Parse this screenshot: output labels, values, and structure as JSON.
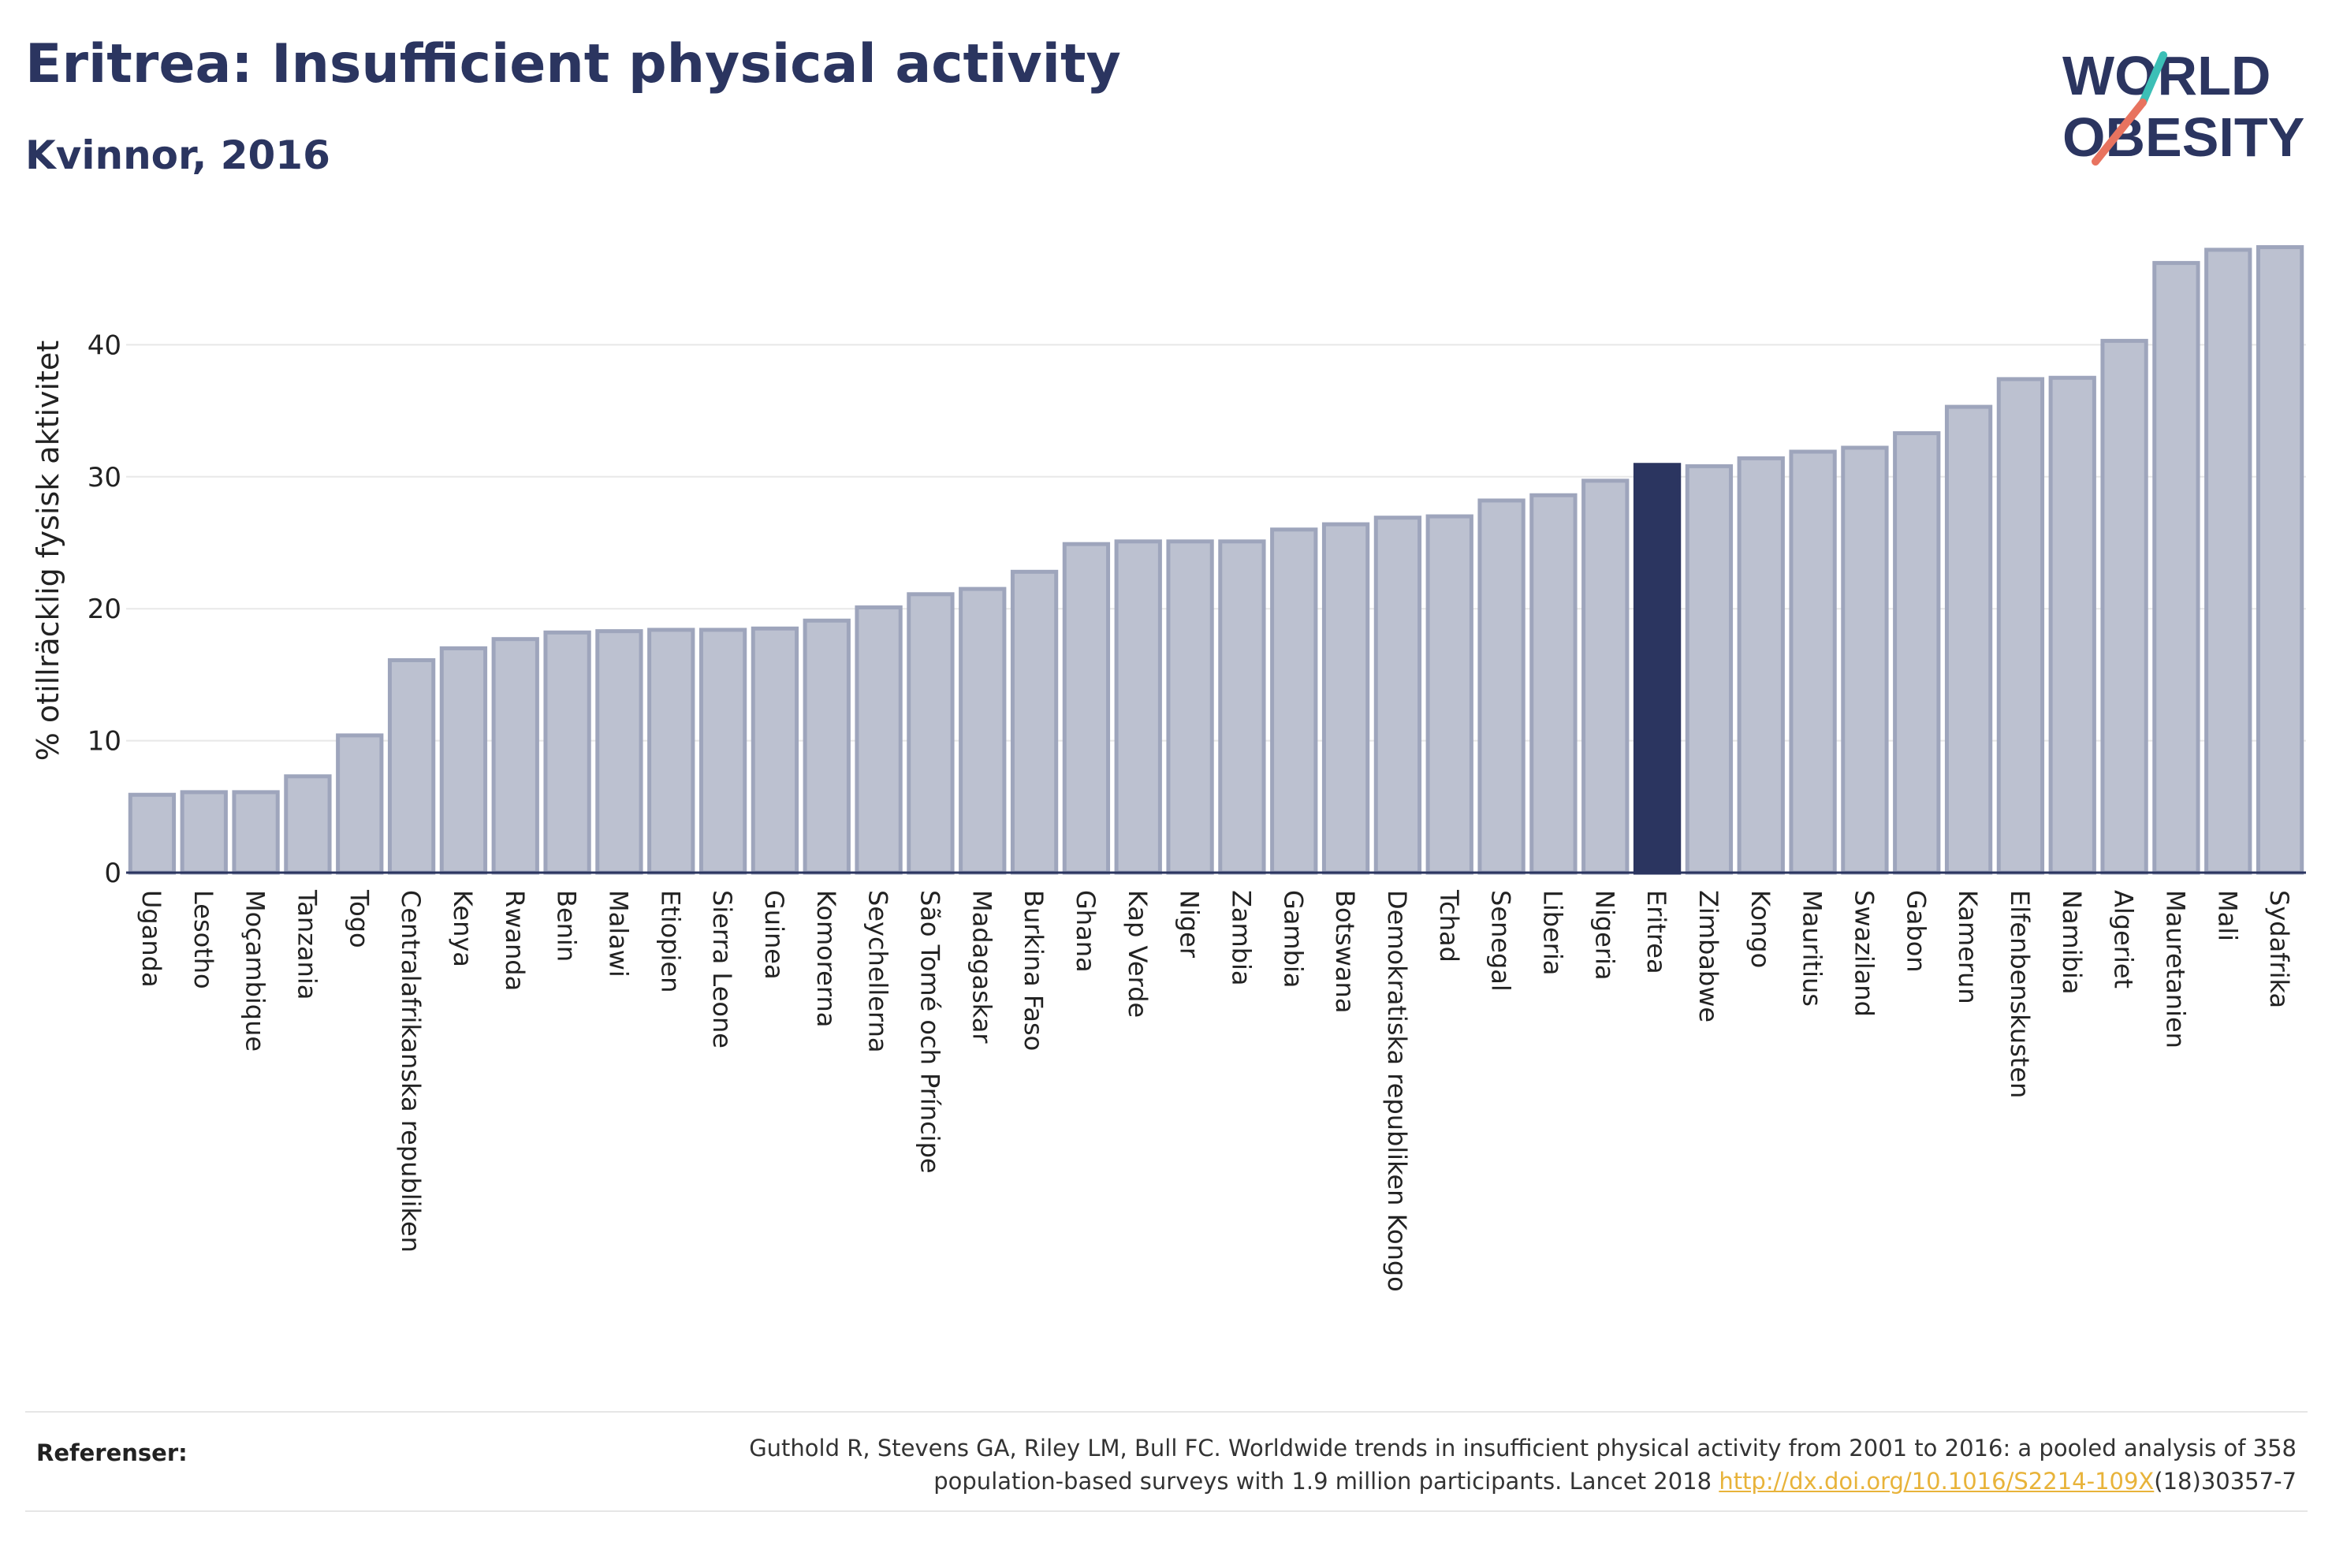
{
  "header": {
    "title": "Eritrea: Insufficient physical activity",
    "subtitle": "Kvinnor, 2016"
  },
  "logo": {
    "line1": "WORLD",
    "line2": "OBESITY",
    "slash_color": "#e8735f",
    "slash_accent": "#3cbfb6",
    "text_color": "#2b3560"
  },
  "colors": {
    "bar": "#bcc1d0",
    "bar_border": "#9ea5bc",
    "highlight": "#2b3560",
    "axis": "#2b3560",
    "grid": "#e8e8e8",
    "link": "#e8b33a"
  },
  "chart_data": {
    "type": "bar",
    "ylabel": "% otillräcklig fysisk aktivitet",
    "xlabel": "",
    "ylim": [
      0,
      50
    ],
    "yticks": [
      0,
      10,
      20,
      30,
      40
    ],
    "grid": true,
    "highlight": "Eritrea",
    "categories": [
      "Uganda",
      "Lesotho",
      "Moçambique",
      "Tanzania",
      "Togo",
      "Centralafrikanska republiken",
      "Kenya",
      "Rwanda",
      "Benin",
      "Malawi",
      "Etiopien",
      "Sierra Leone",
      "Guinea",
      "Komorerna",
      "Seychellerna",
      "São Tomé och Príncipe",
      "Madagaskar",
      "Burkina Faso",
      "Ghana",
      "Kap Verde",
      "Niger",
      "Zambia",
      "Gambia",
      "Botswana",
      "Demokratiska republiken Kongo",
      "Tchad",
      "Senegal",
      "Liberia",
      "Nigeria",
      "Eritrea",
      "Zimbabwe",
      "Kongo",
      "Mauritius",
      "Swaziland",
      "Gabon",
      "Kamerun",
      "Elfenbenskusten",
      "Namibia",
      "Algeriet",
      "Mauretanien",
      "Mali",
      "Sydafrika"
    ],
    "values": [
      5.9,
      6.1,
      6.1,
      7.3,
      10.4,
      16.1,
      17.0,
      17.7,
      18.2,
      18.3,
      18.4,
      18.4,
      18.5,
      19.1,
      20.1,
      21.1,
      21.5,
      22.8,
      24.9,
      25.1,
      25.1,
      25.1,
      26.0,
      26.4,
      26.9,
      27.0,
      28.2,
      28.6,
      29.7,
      30.9,
      30.8,
      31.4,
      31.9,
      32.2,
      33.3,
      35.3,
      37.4,
      37.5,
      40.3,
      46.2,
      47.2,
      47.4
    ]
  },
  "references": {
    "label": "Referenser:",
    "line1": "Guthold R, Stevens GA, Riley LM, Bull FC. Worldwide trends in insufficient physical activity from 2001 to 2016: a pooled analysis of 358",
    "line2_prefix": "population-based surveys with 1.9 million participants. Lancet 2018 ",
    "link": "http://dx.doi.org/10.1016/S2214-109X",
    "line2_suffix": "(18)30357-7"
  }
}
